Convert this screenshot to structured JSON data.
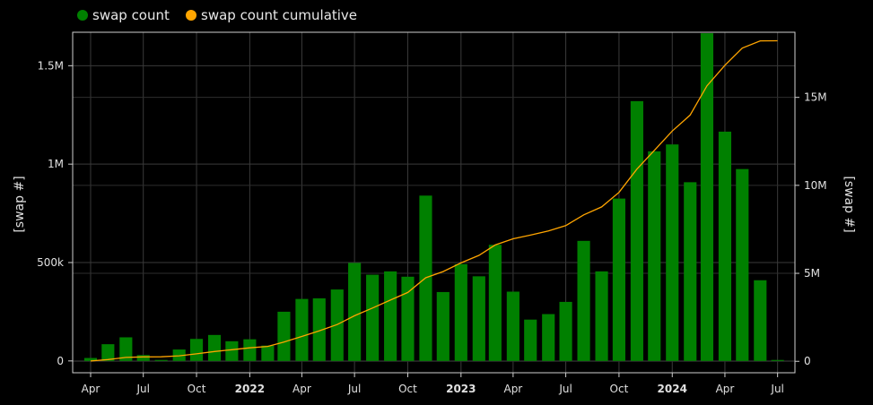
{
  "chart_data": {
    "type": "bar+line",
    "legend": {
      "placement": "top-left",
      "items": [
        {
          "name": "swap count",
          "color": "#008000"
        },
        {
          "name": "swap count cumulative",
          "color": "#ffa500"
        }
      ]
    },
    "y_left": {
      "label": "[swap #]",
      "range": [
        -60000,
        1670000
      ],
      "ticks": [
        {
          "value": 0,
          "label": "0"
        },
        {
          "value": 500000,
          "label": "500k"
        },
        {
          "value": 1000000,
          "label": "1M"
        },
        {
          "value": 1500000,
          "label": "1.5M"
        }
      ]
    },
    "y_right": {
      "label": "[swap #]",
      "range": [
        -650000,
        18700000
      ],
      "ticks": [
        {
          "value": 0,
          "label": "0"
        },
        {
          "value": 5000000,
          "label": "5M"
        },
        {
          "value": 10000000,
          "label": "10M"
        },
        {
          "value": 15000000,
          "label": "15M"
        }
      ]
    },
    "x_axis": {
      "range": [
        "2021-03-01",
        "2024-07-31"
      ],
      "ticks": [
        {
          "date": "2021-04-01",
          "label": "Apr",
          "bold": false
        },
        {
          "date": "2021-07-01",
          "label": "Jul",
          "bold": false
        },
        {
          "date": "2021-10-01",
          "label": "Oct",
          "bold": false
        },
        {
          "date": "2022-01-01",
          "label": "2022",
          "bold": true
        },
        {
          "date": "2022-04-01",
          "label": "Apr",
          "bold": false
        },
        {
          "date": "2022-07-01",
          "label": "Jul",
          "bold": false
        },
        {
          "date": "2022-10-01",
          "label": "Oct",
          "bold": false
        },
        {
          "date": "2023-01-01",
          "label": "2023",
          "bold": true
        },
        {
          "date": "2023-04-01",
          "label": "Apr",
          "bold": false
        },
        {
          "date": "2023-07-01",
          "label": "Jul",
          "bold": false
        },
        {
          "date": "2023-10-01",
          "label": "Oct",
          "bold": false
        },
        {
          "date": "2024-01-01",
          "label": "2024",
          "bold": true
        },
        {
          "date": "2024-04-01",
          "label": "Apr",
          "bold": false
        },
        {
          "date": "2024-07-01",
          "label": "Jul",
          "bold": false
        }
      ]
    },
    "grid": true,
    "series": [
      {
        "name": "swap count",
        "type": "bar",
        "axis": "left",
        "color": "#008000",
        "x": [
          "2021-04-01",
          "2021-05-01",
          "2021-06-01",
          "2021-07-01",
          "2021-08-01",
          "2021-09-01",
          "2021-10-01",
          "2021-11-01",
          "2021-12-01",
          "2022-01-01",
          "2022-02-01",
          "2022-03-01",
          "2022-04-01",
          "2022-05-01",
          "2022-06-01",
          "2022-07-01",
          "2022-08-01",
          "2022-09-01",
          "2022-10-01",
          "2022-11-01",
          "2022-12-01",
          "2023-01-01",
          "2023-02-01",
          "2023-03-01",
          "2023-04-01",
          "2023-05-01",
          "2023-06-01",
          "2023-07-01",
          "2023-08-01",
          "2023-09-01",
          "2023-10-01",
          "2023-11-01",
          "2023-12-01",
          "2024-01-01",
          "2024-02-01",
          "2024-03-01",
          "2024-04-01",
          "2024-05-01",
          "2024-06-01",
          "2024-07-01"
        ],
        "values": [
          15000,
          85000,
          120000,
          30000,
          5000,
          58000,
          112000,
          132000,
          100000,
          110000,
          78000,
          250000,
          315000,
          318000,
          363000,
          498000,
          438000,
          455000,
          428000,
          840000,
          350000,
          492000,
          430000,
          590000,
          352000,
          210000,
          238000,
          300000,
          610000,
          455000,
          825000,
          1320000,
          1065000,
          1100000,
          908000,
          1665000,
          1165000,
          975000,
          410000,
          5000
        ]
      },
      {
        "name": "swap count cumulative",
        "type": "line",
        "axis": "right",
        "color": "#ffa500",
        "x": [
          "2021-04-01",
          "2021-05-01",
          "2021-06-01",
          "2021-07-01",
          "2021-08-01",
          "2021-09-01",
          "2021-10-01",
          "2021-11-01",
          "2021-12-01",
          "2022-01-01",
          "2022-02-01",
          "2022-03-01",
          "2022-04-01",
          "2022-05-01",
          "2022-06-01",
          "2022-07-01",
          "2022-08-01",
          "2022-09-01",
          "2022-10-01",
          "2022-11-01",
          "2022-12-01",
          "2023-01-01",
          "2023-02-01",
          "2023-03-01",
          "2023-04-01",
          "2023-05-01",
          "2023-06-01",
          "2023-07-01",
          "2023-08-01",
          "2023-09-01",
          "2023-10-01",
          "2023-11-01",
          "2023-12-01",
          "2024-01-01",
          "2024-02-01",
          "2024-03-01",
          "2024-04-01",
          "2024-05-01",
          "2024-06-01",
          "2024-07-01"
        ],
        "values": [
          15000,
          100000,
          220000,
          250000,
          255000,
          313000,
          425000,
          557000,
          657000,
          767000,
          845000,
          1095000,
          1410000,
          1728000,
          2091000,
          2589000,
          3027000,
          3482000,
          3910000,
          4750000,
          5100000,
          5592000,
          6022000,
          6612000,
          6964000,
          7174000,
          7412000,
          7712000,
          8322000,
          8777000,
          9602000,
          10922000,
          11987000,
          13087000,
          13995000,
          15660000,
          16825000,
          17800000,
          18210000,
          18215000
        ]
      }
    ]
  }
}
